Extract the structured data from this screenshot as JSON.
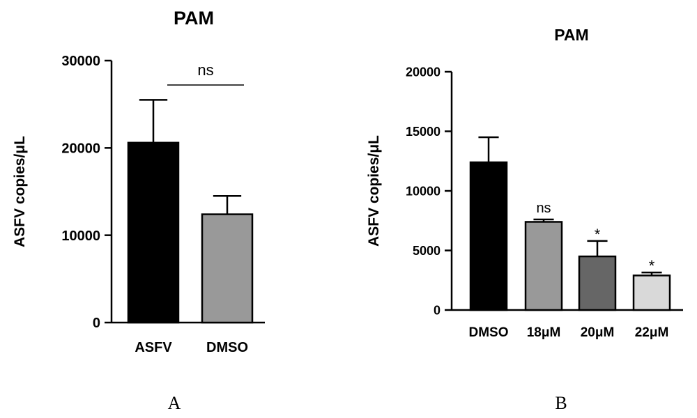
{
  "chart_data": [
    {
      "type": "bar",
      "title": "PAM",
      "ylabel": "ASFV copies/μL",
      "xlabel": "",
      "ylim": [
        0,
        30000
      ],
      "yticks": [
        0,
        10000,
        20000,
        30000
      ],
      "categories": [
        "ASFV",
        "DMSO"
      ],
      "values": [
        20600,
        12400
      ],
      "errors": [
        4900,
        2100
      ],
      "bar_colors": [
        "#000000",
        "#999999"
      ],
      "comparison": {
        "from": 0,
        "to": 1,
        "label": "ns"
      },
      "panel_label": "A"
    },
    {
      "type": "bar",
      "title": "PAM",
      "ylabel": "ASFV copies/μL",
      "xlabel": "",
      "ylim": [
        0,
        20000
      ],
      "yticks": [
        0,
        5000,
        10000,
        15000,
        20000
      ],
      "categories": [
        "DMSO",
        "18μM",
        "20μM",
        "22μM"
      ],
      "values": [
        12400,
        7400,
        4500,
        2900
      ],
      "errors": [
        2100,
        200,
        1300,
        250
      ],
      "bar_colors": [
        "#000000",
        "#999999",
        "#666666",
        "#d9d9d9"
      ],
      "annotations": [
        "",
        "ns",
        "*",
        "*"
      ],
      "panel_label": "B"
    }
  ]
}
